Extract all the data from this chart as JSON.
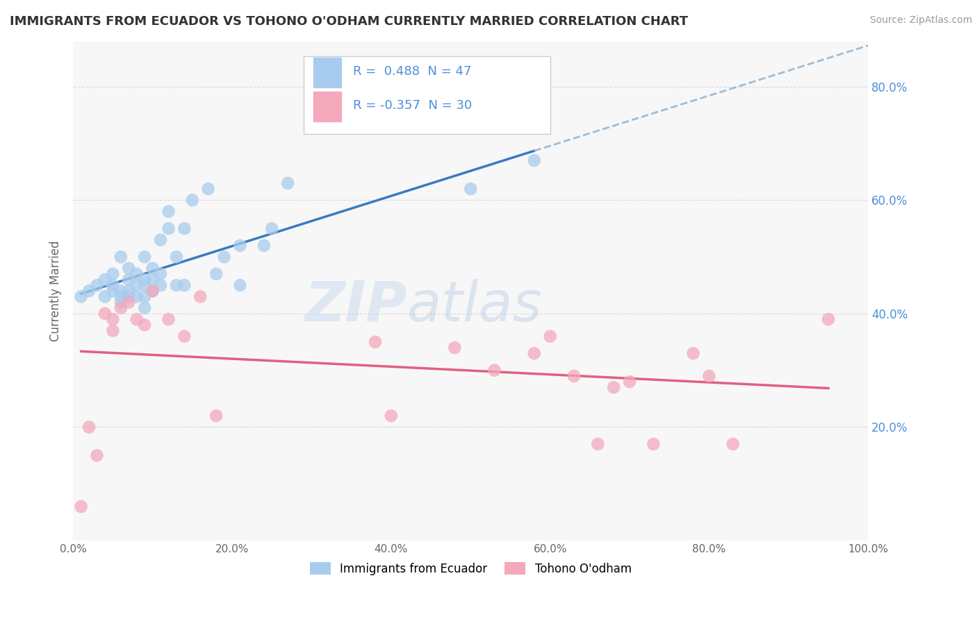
{
  "title": "IMMIGRANTS FROM ECUADOR VS TOHONO O'ODHAM CURRENTLY MARRIED CORRELATION CHART",
  "source": "Source: ZipAtlas.com",
  "ylabel": "Currently Married",
  "xlim": [
    0.0,
    1.0
  ],
  "ylim": [
    0.0,
    0.88
  ],
  "R1": 0.488,
  "N1": 47,
  "R2": -0.357,
  "N2": 30,
  "color1": "#a8ccee",
  "color2": "#f4a8bb",
  "line_color1": "#3a7abf",
  "line_color2": "#e06080",
  "dash_color": "#a0bcd8",
  "background_color": "#f7f7f7",
  "grid_color": "#d8d8d8",
  "legend_label1": "Immigrants from Ecuador",
  "legend_label2": "Tohono O'odham",
  "ecuador_x": [
    0.01,
    0.02,
    0.03,
    0.04,
    0.04,
    0.05,
    0.05,
    0.05,
    0.06,
    0.06,
    0.06,
    0.06,
    0.07,
    0.07,
    0.07,
    0.07,
    0.08,
    0.08,
    0.08,
    0.09,
    0.09,
    0.09,
    0.09,
    0.09,
    0.1,
    0.1,
    0.1,
    0.11,
    0.11,
    0.11,
    0.12,
    0.12,
    0.13,
    0.13,
    0.14,
    0.14,
    0.15,
    0.17,
    0.18,
    0.19,
    0.21,
    0.21,
    0.24,
    0.25,
    0.27,
    0.5,
    0.58
  ],
  "ecuador_y": [
    0.43,
    0.44,
    0.45,
    0.43,
    0.46,
    0.44,
    0.45,
    0.47,
    0.42,
    0.43,
    0.44,
    0.5,
    0.43,
    0.44,
    0.46,
    0.48,
    0.43,
    0.45,
    0.47,
    0.41,
    0.43,
    0.45,
    0.46,
    0.5,
    0.44,
    0.46,
    0.48,
    0.45,
    0.47,
    0.53,
    0.55,
    0.58,
    0.45,
    0.5,
    0.45,
    0.55,
    0.6,
    0.62,
    0.47,
    0.5,
    0.45,
    0.52,
    0.52,
    0.55,
    0.63,
    0.62,
    0.67
  ],
  "tohono_x": [
    0.01,
    0.02,
    0.03,
    0.04,
    0.05,
    0.05,
    0.06,
    0.07,
    0.08,
    0.09,
    0.1,
    0.12,
    0.14,
    0.16,
    0.18,
    0.38,
    0.4,
    0.48,
    0.53,
    0.58,
    0.6,
    0.63,
    0.66,
    0.68,
    0.7,
    0.73,
    0.78,
    0.8,
    0.83,
    0.95
  ],
  "tohono_y": [
    0.06,
    0.2,
    0.15,
    0.4,
    0.37,
    0.39,
    0.41,
    0.42,
    0.39,
    0.38,
    0.44,
    0.39,
    0.36,
    0.43,
    0.22,
    0.35,
    0.22,
    0.34,
    0.3,
    0.33,
    0.36,
    0.29,
    0.17,
    0.27,
    0.28,
    0.17,
    0.33,
    0.29,
    0.17,
    0.39
  ]
}
